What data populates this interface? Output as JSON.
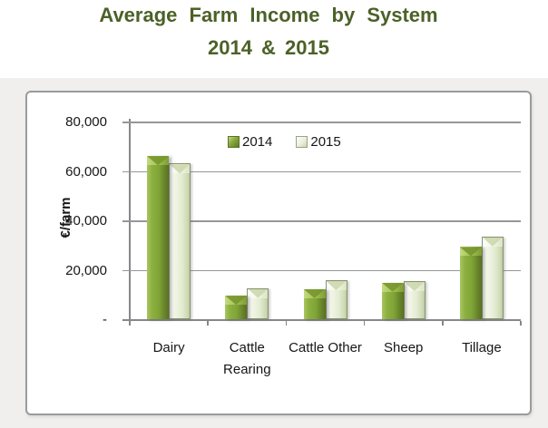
{
  "title": {
    "line1": "Average Farm Income by System",
    "line2": "2014 & 2015"
  },
  "chart_data": {
    "type": "bar",
    "title": "Average Farm Income by System 2014 & 2015",
    "categories": [
      "Dairy",
      "Cattle Rearing",
      "Cattle Other",
      "Sheep",
      "Tillage"
    ],
    "series": [
      {
        "name": "2014",
        "color": "#7fa335",
        "values": [
          66000,
          9500,
          12200,
          14800,
          29200
        ]
      },
      {
        "name": "2015",
        "color": "#e7eed9",
        "values": [
          63000,
          12600,
          15800,
          15400,
          33500
        ]
      }
    ],
    "xlabel": "",
    "ylabel": "€/farm",
    "ylim": [
      0,
      80000
    ],
    "ytick_step": 20000,
    "ytick_labels": [
      "-",
      "20,000",
      "40,000",
      "60,000",
      "80,000"
    ],
    "grid": true,
    "legend_position": "top-center"
  },
  "colors": {
    "title_text": "#4c6127",
    "bar_2014": "#7fa335",
    "bar_2015": "#e7eed9",
    "axis_gray": "#85878a",
    "gridline_gray": "#95979a",
    "frame_border": "#9b9b9b",
    "panel_background": "#f0efed"
  }
}
